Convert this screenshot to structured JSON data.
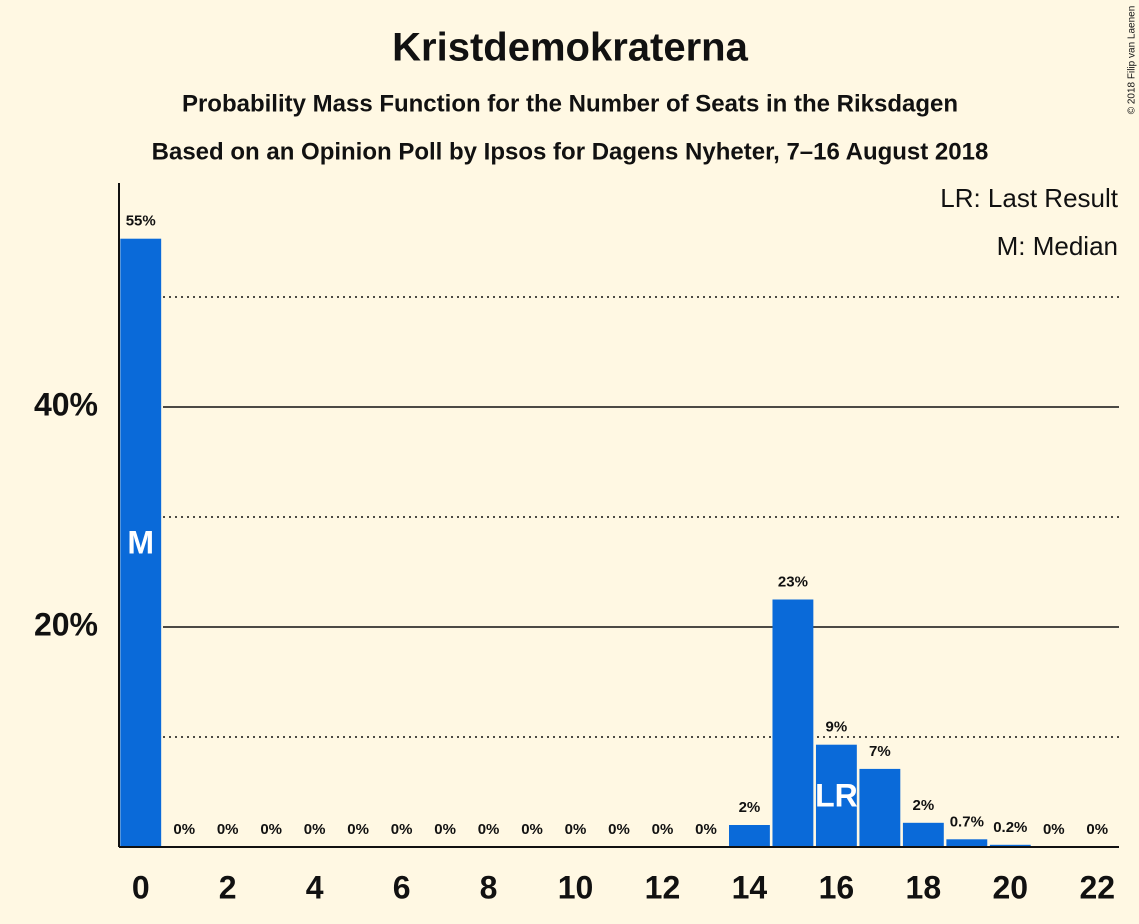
{
  "chart_data": {
    "type": "bar",
    "title": "Kristdemokraterna",
    "subtitles": [
      "Probability Mass Function for the Number of Seats in the Riksdagen",
      "Based on an Opinion Poll by Ipsos for Dagens Nyheter, 7–16 August 2018"
    ],
    "x": [
      0,
      1,
      2,
      3,
      4,
      5,
      6,
      7,
      8,
      9,
      10,
      11,
      12,
      13,
      14,
      15,
      16,
      17,
      18,
      19,
      20,
      21,
      22
    ],
    "values": [
      55.3,
      0,
      0,
      0,
      0,
      0,
      0,
      0,
      0,
      0,
      0,
      0,
      0,
      0,
      2.0,
      22.5,
      9.3,
      7.1,
      2.2,
      0.7,
      0.2,
      0,
      0
    ],
    "value_labels": [
      "55%",
      "0%",
      "0%",
      "0%",
      "0%",
      "0%",
      "0%",
      "0%",
      "0%",
      "0%",
      "0%",
      "0%",
      "0%",
      "0%",
      "2%",
      "23%",
      "9%",
      "7%",
      "2%",
      "0.7%",
      "0.2%",
      "0%",
      "0%"
    ],
    "color": "#0a6ad9",
    "xlim": [
      -0.5,
      22.5
    ],
    "xticks": [
      0,
      2,
      4,
      6,
      8,
      10,
      12,
      14,
      16,
      18,
      20,
      22
    ],
    "ylim": [
      0,
      60
    ],
    "yticks": [
      {
        "value": 20,
        "label": "20%"
      },
      {
        "value": 40,
        "label": "40%"
      }
    ],
    "minor_yticks": [
      10,
      30,
      50
    ],
    "annotations": [
      {
        "text": "M",
        "x": 0
      },
      {
        "text": "LR",
        "x": 16
      }
    ],
    "legend": [
      "LR: Last Result",
      "M: Median"
    ],
    "copyright": "© 2018 Filip van Laenen"
  }
}
